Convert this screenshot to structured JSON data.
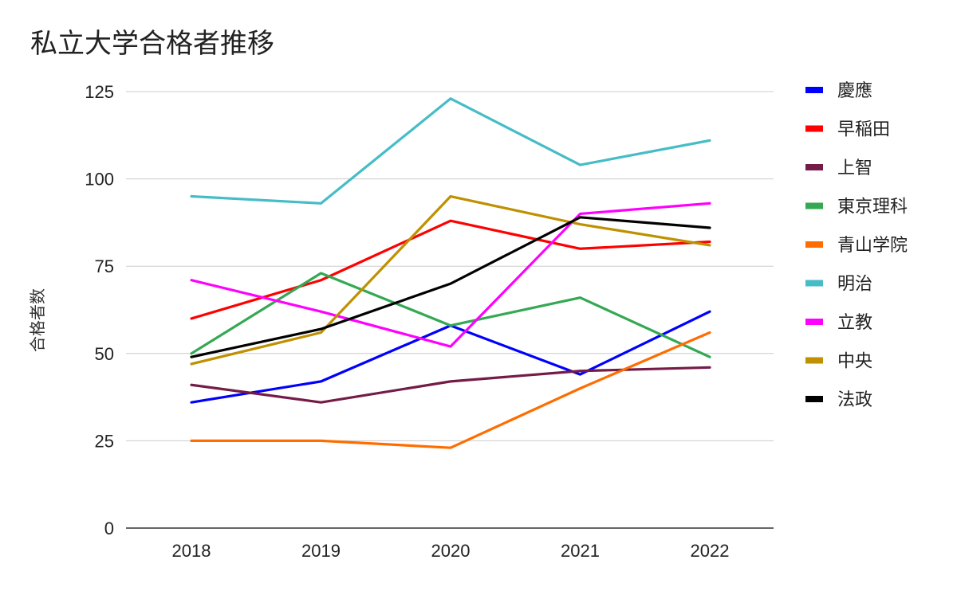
{
  "chart_data": {
    "type": "line",
    "title": "私立大学合格者推移",
    "xlabel": "",
    "ylabel": "合格者数",
    "categories": [
      "2018",
      "2019",
      "2020",
      "2021",
      "2022"
    ],
    "ylim": [
      0,
      125
    ],
    "yticks": [
      0,
      25,
      50,
      75,
      100,
      125
    ],
    "grid": true,
    "legend": "right",
    "series": [
      {
        "name": "慶應",
        "color": "#0000ff",
        "values": [
          36,
          42,
          58,
          44,
          62
        ]
      },
      {
        "name": "早稲田",
        "color": "#ff0000",
        "values": [
          60,
          71,
          88,
          80,
          82
        ]
      },
      {
        "name": "上智",
        "color": "#741b47",
        "values": [
          41,
          36,
          42,
          45,
          46
        ]
      },
      {
        "name": "東京理科",
        "color": "#34a853",
        "values": [
          50,
          73,
          58,
          66,
          49
        ]
      },
      {
        "name": "青山学院",
        "color": "#ff6d01",
        "values": [
          25,
          25,
          23,
          40,
          56
        ]
      },
      {
        "name": "明治",
        "color": "#46bdc6",
        "values": [
          95,
          93,
          123,
          104,
          111
        ]
      },
      {
        "name": "立教",
        "color": "#ff00ff",
        "values": [
          71,
          62,
          52,
          90,
          93
        ]
      },
      {
        "name": "中央",
        "color": "#bf9000",
        "values": [
          47,
          56,
          95,
          87,
          81
        ]
      },
      {
        "name": "法政",
        "color": "#000000",
        "values": [
          49,
          57,
          70,
          89,
          86
        ]
      }
    ]
  }
}
